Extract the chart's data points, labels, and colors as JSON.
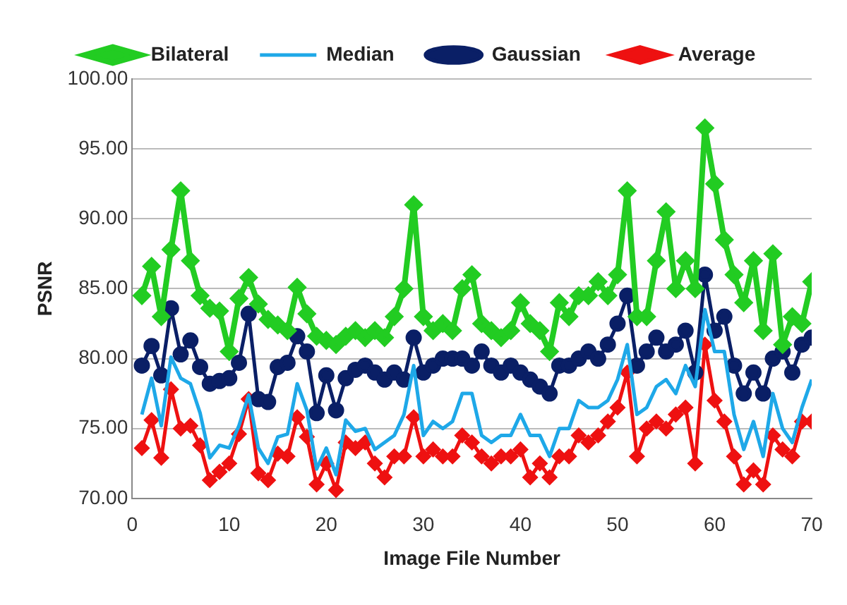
{
  "chart_data": {
    "type": "line",
    "xlabel": "Image File Number",
    "ylabel": "PSNR",
    "x": [
      1,
      2,
      3,
      4,
      5,
      6,
      7,
      8,
      9,
      10,
      11,
      12,
      13,
      14,
      15,
      16,
      17,
      18,
      19,
      20,
      21,
      22,
      23,
      24,
      25,
      26,
      27,
      28,
      29,
      30,
      31,
      32,
      33,
      34,
      35,
      36,
      37,
      38,
      39,
      40,
      41,
      42,
      43,
      44,
      45,
      46,
      47,
      48,
      49,
      50,
      51,
      52,
      53,
      54,
      55,
      56,
      57,
      58,
      59,
      60,
      61,
      62,
      63,
      64,
      65,
      66,
      67,
      68,
      69,
      70
    ],
    "xlim": [
      0,
      70
    ],
    "xticks": [
      0,
      10,
      20,
      30,
      40,
      50,
      60,
      70
    ],
    "ylim": [
      70,
      100
    ],
    "yticks": [
      {
        "value": 70,
        "label": "70.00"
      },
      {
        "value": 75,
        "label": "75.00"
      },
      {
        "value": 80,
        "label": "80.00"
      },
      {
        "value": 85,
        "label": "85.00"
      },
      {
        "value": 90,
        "label": "90.00"
      },
      {
        "value": 95,
        "label": "95.00"
      },
      {
        "value": 100,
        "label": "100.00"
      }
    ],
    "grid": "y",
    "legend": "top",
    "line_style": "solid",
    "series": [
      {
        "name": "Bilateral",
        "color": "#22cc22",
        "marker": "diamond",
        "values": [
          84.5,
          86.6,
          83.0,
          87.8,
          92.0,
          87.0,
          84.5,
          83.6,
          83.4,
          80.5,
          84.3,
          85.8,
          83.9,
          82.8,
          82.4,
          82.0,
          85.1,
          83.2,
          81.6,
          81.3,
          81.0,
          81.6,
          82.0,
          81.5,
          82.0,
          81.5,
          83.0,
          85.0,
          91.0,
          83.0,
          82.0,
          82.5,
          82.0,
          85.0,
          86.0,
          82.5,
          82.0,
          81.5,
          82.0,
          84.0,
          82.5,
          82.0,
          80.5,
          84.0,
          83.0,
          84.5,
          84.5,
          85.5,
          84.5,
          86.0,
          92.0,
          83.0,
          83.0,
          87.0,
          90.5,
          85.0,
          87.0,
          85.0,
          96.5,
          92.5,
          88.5,
          86.0,
          84.0,
          87.0,
          82.0,
          87.5,
          81.0,
          83.0,
          82.5,
          85.5
        ]
      },
      {
        "name": "Median",
        "color": "#1ea8e8",
        "marker": "none",
        "values": [
          76.0,
          78.6,
          75.2,
          80.1,
          78.6,
          78.2,
          76.1,
          72.9,
          73.8,
          73.6,
          75.2,
          77.4,
          73.6,
          72.5,
          74.4,
          74.6,
          78.2,
          76.3,
          72.1,
          73.6,
          71.7,
          75.6,
          74.8,
          75.0,
          73.5,
          74.0,
          74.5,
          76.0,
          79.5,
          74.5,
          75.5,
          75.0,
          75.5,
          77.5,
          77.5,
          74.5,
          74.0,
          74.5,
          74.5,
          76.0,
          74.5,
          74.5,
          73.0,
          75.0,
          75.0,
          77.0,
          76.5,
          76.5,
          77.0,
          78.5,
          81.0,
          76.0,
          76.5,
          78.0,
          78.5,
          77.5,
          79.5,
          78.0,
          83.5,
          80.5,
          80.5,
          76.0,
          73.5,
          75.5,
          73.0,
          77.5,
          75.0,
          74.0,
          76.5,
          78.5
        ]
      },
      {
        "name": "Gaussian",
        "color": "#0a1f66",
        "marker": "circle",
        "values": [
          79.5,
          80.9,
          78.8,
          83.6,
          80.3,
          81.3,
          79.4,
          78.2,
          78.4,
          78.6,
          79.7,
          83.2,
          77.1,
          76.9,
          79.4,
          79.7,
          81.6,
          80.5,
          76.1,
          78.8,
          76.3,
          78.6,
          79.2,
          79.5,
          79.0,
          78.5,
          79.0,
          78.5,
          81.5,
          79.0,
          79.5,
          80.0,
          80.0,
          80.0,
          79.5,
          80.5,
          79.5,
          79.0,
          79.5,
          79.0,
          78.5,
          78.0,
          77.5,
          79.5,
          79.5,
          80.0,
          80.5,
          80.0,
          81.0,
          82.5,
          84.5,
          79.5,
          80.5,
          81.5,
          80.5,
          81.0,
          82.0,
          79.0,
          86.0,
          82.0,
          83.0,
          79.5,
          77.5,
          79.0,
          77.5,
          80.0,
          80.5,
          79.0,
          81.0,
          81.5
        ]
      },
      {
        "name": "Average",
        "color": "#ee1111",
        "marker": "diamond",
        "values": [
          73.6,
          75.6,
          72.9,
          77.8,
          75.0,
          75.2,
          73.8,
          71.3,
          71.9,
          72.5,
          74.6,
          77.1,
          71.8,
          71.3,
          73.2,
          73.0,
          75.8,
          74.4,
          71.0,
          72.5,
          70.6,
          74.0,
          73.6,
          74.0,
          72.5,
          71.5,
          73.0,
          73.0,
          75.8,
          73.0,
          73.5,
          73.0,
          73.0,
          74.5,
          74.0,
          73.0,
          72.5,
          73.0,
          73.0,
          73.5,
          71.5,
          72.5,
          71.5,
          73.0,
          73.0,
          74.5,
          74.0,
          74.5,
          75.5,
          76.5,
          79.0,
          73.0,
          75.0,
          75.5,
          75.0,
          76.0,
          76.5,
          72.5,
          81.0,
          77.0,
          75.5,
          73.0,
          71.0,
          72.0,
          71.0,
          74.5,
          73.5,
          73.0,
          75.5,
          75.5
        ]
      }
    ]
  }
}
